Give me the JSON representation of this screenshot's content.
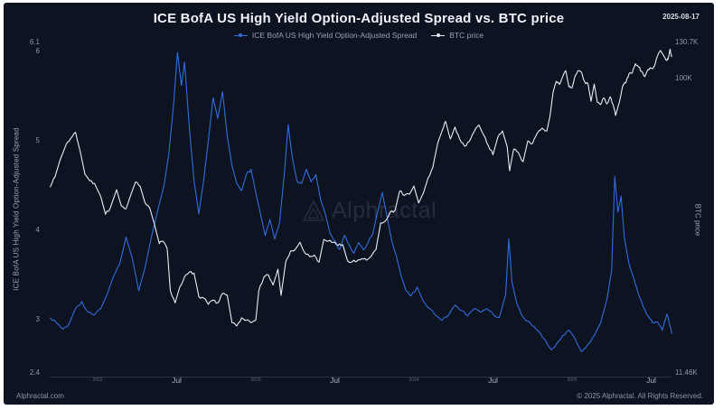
{
  "meta": {
    "date": "2025-08-17"
  },
  "footer": {
    "left": "Alphractal.com",
    "right": "© 2025 Alphractal. All Rights Reserved."
  },
  "watermark": {
    "text": "Alphractal"
  },
  "colors": {
    "panel_bg": "#0d1321",
    "page_bg": "#ffffff",
    "spread_line": "#2f6de0",
    "btc_line": "#e9ecf4"
  },
  "chart_data": {
    "type": "line",
    "title": "ICE BofA US High Yield Option-Adjusted Spread vs. BTC price",
    "left_axis": {
      "label": "ICE BofA US High Yield Option-Adjusted Spread",
      "scale": "linear",
      "range": [
        2.4,
        6.1
      ],
      "ticks": [
        {
          "label": "6.1",
          "v": 6.1
        },
        {
          "label": "6",
          "v": 6
        },
        {
          "label": "5",
          "v": 5
        },
        {
          "label": "4",
          "v": 4
        },
        {
          "label": "3",
          "v": 3
        },
        {
          "label": "2.4",
          "v": 2.4
        }
      ]
    },
    "right_axis": {
      "label": "BTC price",
      "scale": "log",
      "range_k": [
        11.46,
        130.7
      ],
      "ticks": [
        {
          "label": "130.7K",
          "v": 130.7
        },
        {
          "label": "100K",
          "v": 100
        },
        {
          "label": "11.46K",
          "v": 11.46
        }
      ]
    },
    "x_axis": {
      "range": [
        2021.7,
        2025.63
      ],
      "grid": false,
      "ticks": [
        {
          "label": "2022",
          "t": 2022.0,
          "minor": true
        },
        {
          "label": "Jul",
          "t": 2022.5,
          "minor": false
        },
        {
          "label": "2023",
          "t": 2023.0,
          "minor": true
        },
        {
          "label": "Jul",
          "t": 2023.5,
          "minor": false
        },
        {
          "label": "2024",
          "t": 2024.0,
          "minor": true
        },
        {
          "label": "Jul",
          "t": 2024.5,
          "minor": false
        },
        {
          "label": "2025",
          "t": 2025.0,
          "minor": true
        },
        {
          "label": "Jul",
          "t": 2025.5,
          "minor": false
        }
      ]
    },
    "legend_position": "top-center",
    "series": [
      {
        "name": "ICE BofA US High Yield Option-Adjusted Spread",
        "color": "#2f6de0",
        "axis": "left",
        "points": [
          [
            2021.7,
            3.02
          ],
          [
            2021.74,
            2.96
          ],
          [
            2021.78,
            2.89
          ],
          [
            2021.82,
            2.95
          ],
          [
            2021.86,
            3.12
          ],
          [
            2021.9,
            3.2
          ],
          [
            2021.94,
            3.08
          ],
          [
            2021.98,
            3.05
          ],
          [
            2022.02,
            3.12
          ],
          [
            2022.06,
            3.28
          ],
          [
            2022.1,
            3.48
          ],
          [
            2022.14,
            3.62
          ],
          [
            2022.18,
            3.92
          ],
          [
            2022.22,
            3.68
          ],
          [
            2022.26,
            3.32
          ],
          [
            2022.3,
            3.58
          ],
          [
            2022.34,
            3.92
          ],
          [
            2022.38,
            4.22
          ],
          [
            2022.42,
            4.5
          ],
          [
            2022.45,
            4.85
          ],
          [
            2022.48,
            5.4
          ],
          [
            2022.505,
            5.99
          ],
          [
            2022.53,
            5.62
          ],
          [
            2022.55,
            5.88
          ],
          [
            2022.58,
            5.15
          ],
          [
            2022.61,
            4.55
          ],
          [
            2022.64,
            4.18
          ],
          [
            2022.67,
            4.55
          ],
          [
            2022.7,
            5.0
          ],
          [
            2022.73,
            5.48
          ],
          [
            2022.76,
            5.25
          ],
          [
            2022.79,
            5.55
          ],
          [
            2022.82,
            5.05
          ],
          [
            2022.85,
            4.72
          ],
          [
            2022.88,
            4.52
          ],
          [
            2022.91,
            4.44
          ],
          [
            2022.94,
            4.62
          ],
          [
            2022.97,
            4.68
          ],
          [
            2023.0,
            4.42
          ],
          [
            2023.03,
            4.18
          ],
          [
            2023.06,
            3.94
          ],
          [
            2023.09,
            4.12
          ],
          [
            2023.12,
            3.9
          ],
          [
            2023.15,
            4.08
          ],
          [
            2023.18,
            4.62
          ],
          [
            2023.205,
            5.18
          ],
          [
            2023.23,
            4.82
          ],
          [
            2023.26,
            4.55
          ],
          [
            2023.29,
            4.52
          ],
          [
            2023.32,
            4.68
          ],
          [
            2023.35,
            4.54
          ],
          [
            2023.38,
            4.62
          ],
          [
            2023.41,
            4.34
          ],
          [
            2023.44,
            4.18
          ],
          [
            2023.47,
            3.96
          ],
          [
            2023.5,
            3.88
          ],
          [
            2023.53,
            3.78
          ],
          [
            2023.56,
            3.94
          ],
          [
            2023.59,
            3.84
          ],
          [
            2023.62,
            3.74
          ],
          [
            2023.65,
            3.86
          ],
          [
            2023.68,
            3.78
          ],
          [
            2023.71,
            3.86
          ],
          [
            2023.74,
            3.96
          ],
          [
            2023.77,
            4.2
          ],
          [
            2023.8,
            4.42
          ],
          [
            2023.83,
            4.15
          ],
          [
            2023.86,
            3.88
          ],
          [
            2023.89,
            3.7
          ],
          [
            2023.92,
            3.48
          ],
          [
            2023.95,
            3.32
          ],
          [
            2023.98,
            3.26
          ],
          [
            2024.02,
            3.36
          ],
          [
            2024.06,
            3.2
          ],
          [
            2024.1,
            3.12
          ],
          [
            2024.14,
            3.04
          ],
          [
            2024.18,
            2.99
          ],
          [
            2024.22,
            3.05
          ],
          [
            2024.26,
            3.16
          ],
          [
            2024.3,
            3.1
          ],
          [
            2024.34,
            3.04
          ],
          [
            2024.38,
            3.12
          ],
          [
            2024.42,
            3.08
          ],
          [
            2024.46,
            3.12
          ],
          [
            2024.5,
            3.06
          ],
          [
            2024.54,
            3.02
          ],
          [
            2024.58,
            3.28
          ],
          [
            2024.6,
            3.9
          ],
          [
            2024.62,
            3.42
          ],
          [
            2024.65,
            3.18
          ],
          [
            2024.68,
            3.05
          ],
          [
            2024.72,
            2.98
          ],
          [
            2024.76,
            2.92
          ],
          [
            2024.8,
            2.84
          ],
          [
            2024.84,
            2.74
          ],
          [
            2024.87,
            2.66
          ],
          [
            2024.9,
            2.72
          ],
          [
            2024.94,
            2.82
          ],
          [
            2024.98,
            2.88
          ],
          [
            2025.02,
            2.78
          ],
          [
            2025.06,
            2.64
          ],
          [
            2025.1,
            2.72
          ],
          [
            2025.14,
            2.82
          ],
          [
            2025.18,
            2.96
          ],
          [
            2025.22,
            3.22
          ],
          [
            2025.25,
            3.55
          ],
          [
            2025.27,
            4.6
          ],
          [
            2025.29,
            4.2
          ],
          [
            2025.31,
            4.38
          ],
          [
            2025.33,
            3.92
          ],
          [
            2025.36,
            3.62
          ],
          [
            2025.39,
            3.46
          ],
          [
            2025.42,
            3.28
          ],
          [
            2025.45,
            3.14
          ],
          [
            2025.48,
            3.04
          ],
          [
            2025.51,
            2.96
          ],
          [
            2025.54,
            2.97
          ],
          [
            2025.57,
            2.88
          ],
          [
            2025.6,
            3.06
          ],
          [
            2025.62,
            2.92
          ],
          [
            2025.63,
            2.84
          ]
        ]
      },
      {
        "name": "BTC price",
        "color": "#e9ecf4",
        "axis": "right",
        "points": [
          [
            2021.7,
            45.0
          ],
          [
            2021.73,
            48.5
          ],
          [
            2021.76,
            54.5
          ],
          [
            2021.8,
            61.5
          ],
          [
            2021.83,
            64.5
          ],
          [
            2021.86,
            67.5
          ],
          [
            2021.89,
            58.5
          ],
          [
            2021.92,
            49.5
          ],
          [
            2021.95,
            47.2
          ],
          [
            2021.98,
            46.3
          ],
          [
            2022.02,
            42.0
          ],
          [
            2022.05,
            36.9
          ],
          [
            2022.08,
            38.6
          ],
          [
            2022.12,
            44.2
          ],
          [
            2022.15,
            39.2
          ],
          [
            2022.18,
            38.4
          ],
          [
            2022.21,
            42.6
          ],
          [
            2022.24,
            46.8
          ],
          [
            2022.27,
            45.2
          ],
          [
            2022.3,
            40.1
          ],
          [
            2022.33,
            38.6
          ],
          [
            2022.36,
            34.2
          ],
          [
            2022.39,
            29.7
          ],
          [
            2022.41,
            30.3
          ],
          [
            2022.44,
            28.6
          ],
          [
            2022.46,
            21.0
          ],
          [
            2022.49,
            19.2
          ],
          [
            2022.52,
            21.6
          ],
          [
            2022.55,
            23.3
          ],
          [
            2022.58,
            24.1
          ],
          [
            2022.61,
            23.9
          ],
          [
            2022.64,
            20.1
          ],
          [
            2022.67,
            19.9
          ],
          [
            2022.7,
            19.0
          ],
          [
            2022.73,
            19.6
          ],
          [
            2022.76,
            19.2
          ],
          [
            2022.79,
            20.6
          ],
          [
            2022.82,
            20.3
          ],
          [
            2022.85,
            16.6
          ],
          [
            2022.88,
            16.2
          ],
          [
            2022.91,
            17.2
          ],
          [
            2022.94,
            16.9
          ],
          [
            2022.97,
            16.6
          ],
          [
            2023.0,
            16.9
          ],
          [
            2023.02,
            21.1
          ],
          [
            2023.05,
            23.1
          ],
          [
            2023.08,
            23.6
          ],
          [
            2023.11,
            21.9
          ],
          [
            2023.14,
            24.6
          ],
          [
            2023.16,
            20.3
          ],
          [
            2023.19,
            26.1
          ],
          [
            2023.22,
            28.1
          ],
          [
            2023.25,
            28.5
          ],
          [
            2023.28,
            30.0
          ],
          [
            2023.31,
            27.8
          ],
          [
            2023.34,
            27.0
          ],
          [
            2023.37,
            27.3
          ],
          [
            2023.4,
            25.9
          ],
          [
            2023.43,
            30.6
          ],
          [
            2023.46,
            30.3
          ],
          [
            2023.49,
            30.0
          ],
          [
            2023.52,
            29.3
          ],
          [
            2023.55,
            29.5
          ],
          [
            2023.58,
            26.2
          ],
          [
            2023.61,
            26.0
          ],
          [
            2023.64,
            26.1
          ],
          [
            2023.67,
            26.6
          ],
          [
            2023.7,
            26.3
          ],
          [
            2023.73,
            27.1
          ],
          [
            2023.76,
            28.4
          ],
          [
            2023.79,
            34.6
          ],
          [
            2023.82,
            35.1
          ],
          [
            2023.85,
            37.4
          ],
          [
            2023.88,
            37.9
          ],
          [
            2023.91,
            43.8
          ],
          [
            2023.94,
            42.4
          ],
          [
            2023.97,
            42.7
          ],
          [
            2024.0,
            45.4
          ],
          [
            2024.03,
            40.1
          ],
          [
            2024.06,
            43.1
          ],
          [
            2024.09,
            48.2
          ],
          [
            2024.12,
            52.2
          ],
          [
            2024.15,
            62.2
          ],
          [
            2024.18,
            68.6
          ],
          [
            2024.2,
            73.1
          ],
          [
            2024.23,
            64.2
          ],
          [
            2024.26,
            70.1
          ],
          [
            2024.29,
            64.1
          ],
          [
            2024.32,
            60.9
          ],
          [
            2024.35,
            63.0
          ],
          [
            2024.38,
            67.6
          ],
          [
            2024.41,
            71.2
          ],
          [
            2024.44,
            66.3
          ],
          [
            2024.47,
            61.1
          ],
          [
            2024.5,
            57.2
          ],
          [
            2024.53,
            64.9
          ],
          [
            2024.56,
            68.1
          ],
          [
            2024.59,
            60.6
          ],
          [
            2024.605,
            50.8
          ],
          [
            2024.63,
            59.5
          ],
          [
            2024.66,
            58.1
          ],
          [
            2024.69,
            54.3
          ],
          [
            2024.72,
            63.3
          ],
          [
            2024.75,
            62.1
          ],
          [
            2024.78,
            67.1
          ],
          [
            2024.81,
            69.5
          ],
          [
            2024.84,
            68.0
          ],
          [
            2024.86,
            75.7
          ],
          [
            2024.88,
            90.6
          ],
          [
            2024.9,
            98.1
          ],
          [
            2024.92,
            96.0
          ],
          [
            2024.94,
            101.3
          ],
          [
            2024.96,
            106.2
          ],
          [
            2024.98,
            94.3
          ],
          [
            2025.0,
            93.6
          ],
          [
            2025.02,
            102.4
          ],
          [
            2025.04,
            106.2
          ],
          [
            2025.06,
            104.9
          ],
          [
            2025.08,
            97.7
          ],
          [
            2025.1,
            96.6
          ],
          [
            2025.12,
            84.8
          ],
          [
            2025.14,
            96.1
          ],
          [
            2025.16,
            84.1
          ],
          [
            2025.18,
            82.7
          ],
          [
            2025.2,
            86.9
          ],
          [
            2025.22,
            83.1
          ],
          [
            2025.24,
            87.6
          ],
          [
            2025.26,
            82.6
          ],
          [
            2025.275,
            76.3
          ],
          [
            2025.3,
            84.6
          ],
          [
            2025.32,
            94.8
          ],
          [
            2025.34,
            97.1
          ],
          [
            2025.36,
            103.8
          ],
          [
            2025.38,
            104.2
          ],
          [
            2025.4,
            111.7
          ],
          [
            2025.42,
            109.0
          ],
          [
            2025.44,
            105.7
          ],
          [
            2025.46,
            101.6
          ],
          [
            2025.48,
            107.1
          ],
          [
            2025.5,
            108.1
          ],
          [
            2025.52,
            109.7
          ],
          [
            2025.54,
            118.1
          ],
          [
            2025.56,
            123.2
          ],
          [
            2025.58,
            118.1
          ],
          [
            2025.6,
            114.4
          ],
          [
            2025.61,
            117.6
          ],
          [
            2025.62,
            124.4
          ],
          [
            2025.63,
            117.4
          ]
        ]
      }
    ]
  }
}
